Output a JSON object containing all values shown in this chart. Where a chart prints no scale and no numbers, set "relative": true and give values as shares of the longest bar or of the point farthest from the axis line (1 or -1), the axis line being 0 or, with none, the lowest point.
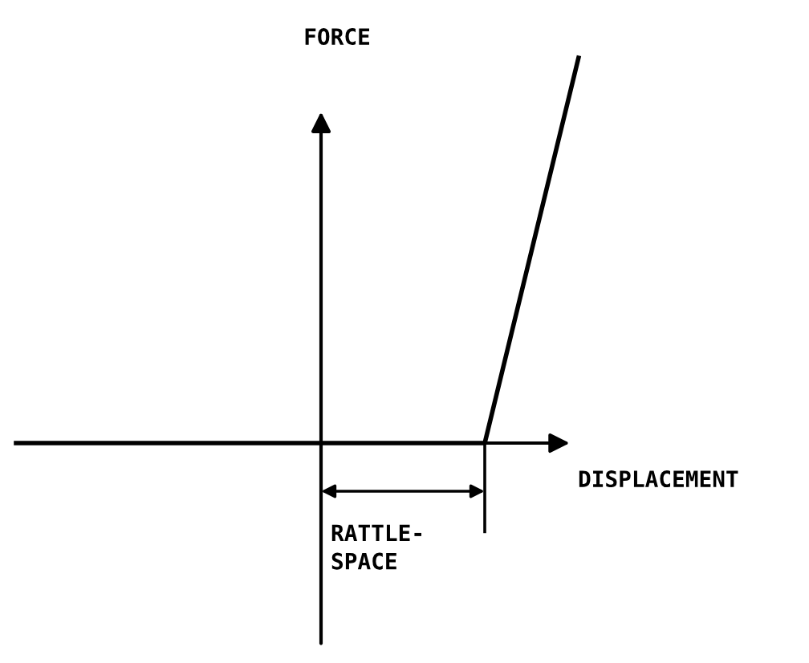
{
  "chart_data": {
    "type": "line",
    "relative": true,
    "xlabel": "DISPLACEMENT",
    "ylabel": "FORCE",
    "categories": [
      null,
      null,
      null,
      null,
      null,
      null,
      null
    ],
    "series": [
      {
        "color": "#000000",
        "values": [
          0,
          0,
          0,
          0,
          0,
          0,
          1
        ]
      }
    ],
    "annotations": [
      "RATTLE-\nSPACE"
    ],
    "marker": "none",
    "line_style": "solid"
  }
}
